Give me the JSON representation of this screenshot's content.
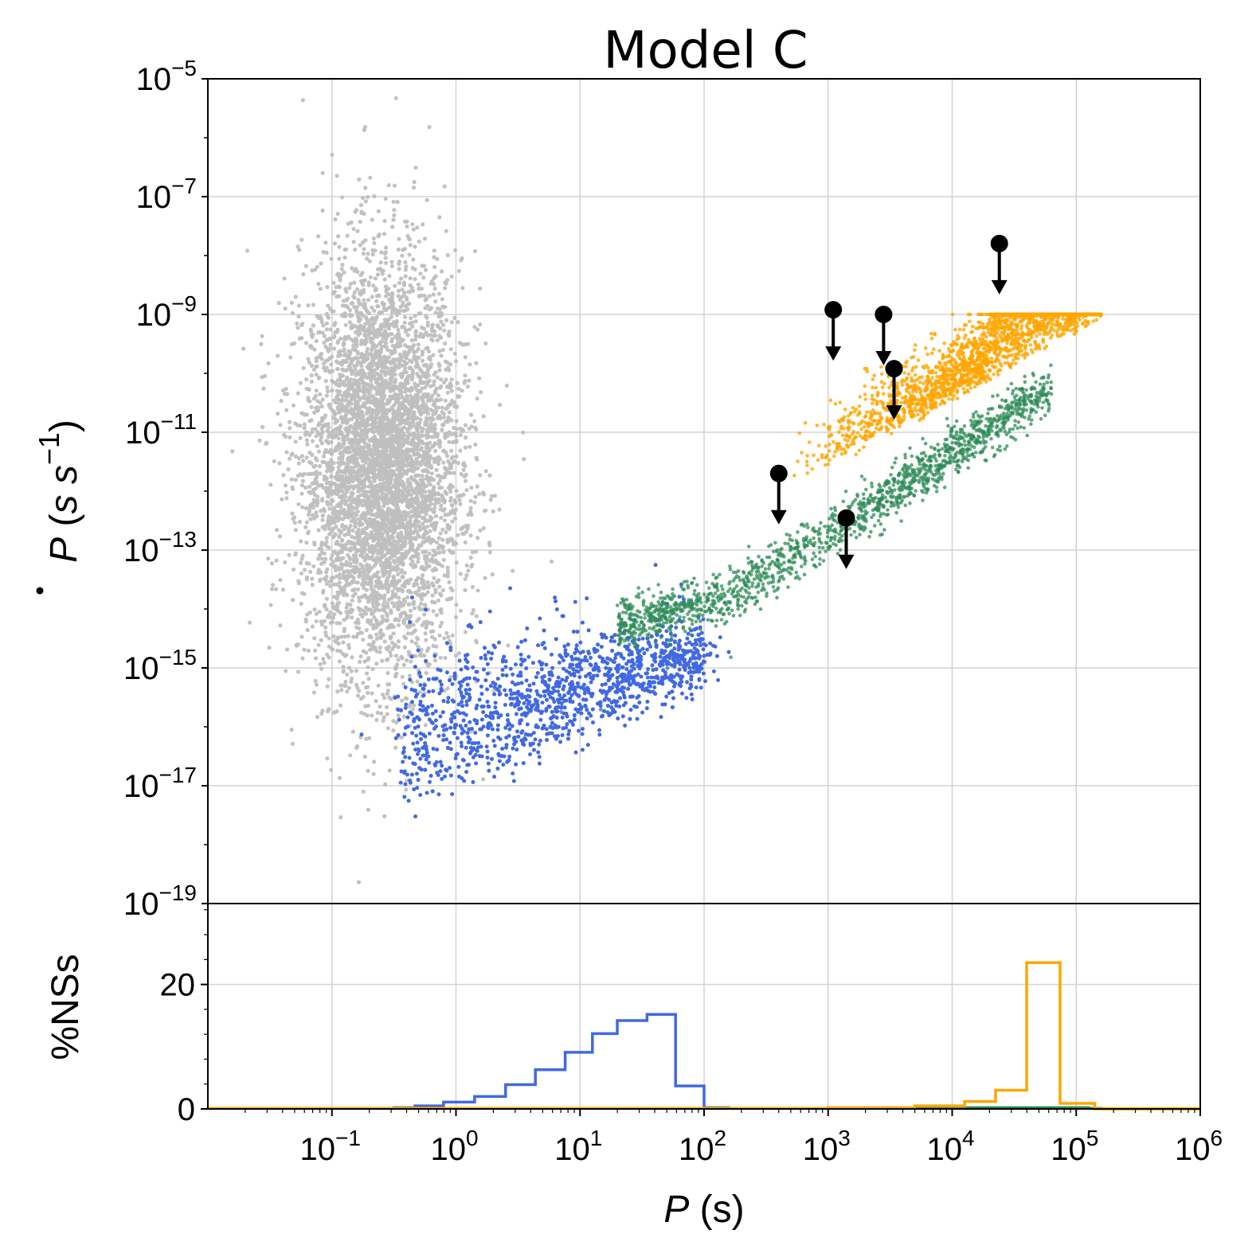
{
  "chart_data": [
    {
      "type": "scatter",
      "title": "Model C",
      "xlabel": "",
      "ylabel": "Ṗ (s s⁻¹)",
      "xscale": "log",
      "yscale": "log",
      "xlim": [
        0.01,
        1000000
      ],
      "ylim": [
        1e-19,
        1e-05
      ],
      "grid": true,
      "legend": "none",
      "x_ticks": [
        {
          "base": "10",
          "exp": "−1"
        },
        {
          "base": "10",
          "exp": "0"
        },
        {
          "base": "10",
          "exp": "1"
        },
        {
          "base": "10",
          "exp": "2"
        },
        {
          "base": "10",
          "exp": "3"
        },
        {
          "base": "10",
          "exp": "4"
        },
        {
          "base": "10",
          "exp": "5"
        },
        {
          "base": "10",
          "exp": "6"
        }
      ],
      "y_ticks": [
        {
          "base": "10",
          "exp": "−19"
        },
        {
          "base": "10",
          "exp": "−17"
        },
        {
          "base": "10",
          "exp": "−15"
        },
        {
          "base": "10",
          "exp": "−13"
        },
        {
          "base": "10",
          "exp": "−11"
        },
        {
          "base": "10",
          "exp": "−9"
        },
        {
          "base": "10",
          "exp": "−7"
        },
        {
          "base": "10",
          "exp": "−5"
        }
      ],
      "series": [
        {
          "color": "#bfbfbf",
          "kind": "cloud",
          "logP_mean": -0.6,
          "logP_sd": 0.32,
          "logPdot_mean": -11.6,
          "logPdot_sd": 1.75,
          "count": 5200
        },
        {
          "color": "#4169e1",
          "kind": "wedge",
          "logP_range": [
            -0.5,
            2.0
          ],
          "count": 4200
        },
        {
          "color": "#2e8b57",
          "kind": "band",
          "logP_range": [
            1.3,
            4.8
          ],
          "count": 1300
        },
        {
          "color": "#ffa500",
          "kind": "wedge",
          "logP_range": [
            2.7,
            5.2
          ],
          "count": 2600
        }
      ],
      "upper_limits": [
        {
          "P": 1100,
          "Pdot": 1.2e-09
        },
        {
          "P": 2800,
          "Pdot": 1e-09
        },
        {
          "P": 3400,
          "Pdot": 1.2e-10
        },
        {
          "P": 400,
          "Pdot": 2e-12
        },
        {
          "P": 1400,
          "Pdot": 3.5e-13
        },
        {
          "P": 24000,
          "Pdot": 1.6e-08
        }
      ]
    },
    {
      "type": "histogram",
      "xlabel": "P (s)",
      "ylabel": "%NSs",
      "xscale": "log",
      "xlim": [
        0.01,
        1000000
      ],
      "ylim": [
        0,
        33
      ],
      "grid": true,
      "y_ticks": [
        "0",
        "20"
      ],
      "series": [
        {
          "color": "#4169e1",
          "bin_edges_log": [
            -0.5,
            -0.33,
            -0.1,
            0.15,
            0.4,
            0.64,
            0.88,
            1.1,
            1.3,
            1.54,
            1.77,
            2.0,
            2.2
          ],
          "values": [
            0.2,
            0.5,
            1.1,
            2.0,
            3.9,
            6.3,
            9.1,
            12.1,
            14.2,
            15.2,
            3.7,
            0.2
          ]
        },
        {
          "color": "#2e8b57",
          "bin_edges_log": [
            2.0,
            3.0,
            4.0,
            4.85,
            5.1,
            5.2
          ],
          "values": [
            0.1,
            0.15,
            0.2,
            0.2,
            0.1
          ]
        },
        {
          "color": "#ffa500",
          "bin_edges_log": [
            -2.0,
            3.0,
            3.7,
            4.1,
            4.35,
            4.6,
            4.87,
            5.15,
            5.44,
            6.0
          ],
          "values": [
            0.1,
            0.2,
            0.5,
            1.2,
            3.0,
            23.5,
            0.9,
            0.0,
            0.0
          ]
        }
      ]
    }
  ]
}
